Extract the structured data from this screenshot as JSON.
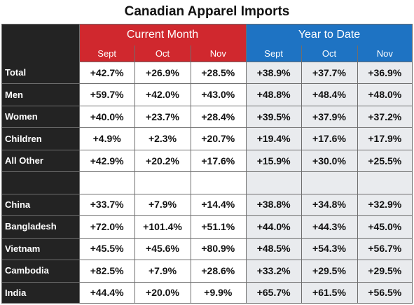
{
  "chart_data": {
    "type": "table",
    "title": "Canadian Apparel Imports",
    "column_groups": [
      {
        "name": "Current Month",
        "months": [
          "Sept",
          "Oct",
          "Nov"
        ],
        "color": "#d0282e"
      },
      {
        "name": "Year to Date",
        "months": [
          "Sept",
          "Oct",
          "Nov"
        ],
        "color": "#1e73c3"
      }
    ],
    "rows": [
      {
        "label": "Total",
        "values": [
          "+42.7%",
          "+26.9%",
          "+28.5%",
          "+38.9%",
          "+37.7%",
          "+36.9%"
        ]
      },
      {
        "label": "Men",
        "values": [
          "+59.7%",
          "+42.0%",
          "+43.0%",
          "+48.8%",
          "+48.4%",
          "+48.0%"
        ]
      },
      {
        "label": "Women",
        "values": [
          "+40.0%",
          "+23.7%",
          "+28.4%",
          "+39.5%",
          "+37.9%",
          "+37.2%"
        ]
      },
      {
        "label": "Children",
        "values": [
          "+4.9%",
          "+2.3%",
          "+20.7%",
          "+19.4%",
          "+17.6%",
          "+17.9%"
        ]
      },
      {
        "label": "All Other",
        "values": [
          "+42.9%",
          "+20.2%",
          "+17.6%",
          "+15.9%",
          "+30.0%",
          "+25.5%"
        ]
      },
      {
        "label": "",
        "values": [
          "",
          "",
          "",
          "",
          "",
          ""
        ]
      },
      {
        "label": "China",
        "values": [
          "+33.7%",
          "+7.9%",
          "+14.4%",
          "+38.8%",
          "+34.8%",
          "+32.9%"
        ]
      },
      {
        "label": "Bangladesh",
        "values": [
          "+72.0%",
          "+101.4%",
          "+51.1%",
          "+44.0%",
          "+44.3%",
          "+45.0%"
        ]
      },
      {
        "label": "Vietnam",
        "values": [
          "+45.5%",
          "+45.6%",
          "+80.9%",
          "+48.5%",
          "+54.3%",
          "+56.7%"
        ]
      },
      {
        "label": "Cambodia",
        "values": [
          "+82.5%",
          "+7.9%",
          "+28.6%",
          "+33.2%",
          "+29.5%",
          "+29.5%"
        ]
      },
      {
        "label": "India",
        "values": [
          "+44.4%",
          "+20.0%",
          "+9.9%",
          "+65.7%",
          "+61.5%",
          "+56.5%"
        ]
      }
    ],
    "colors": {
      "label_bg": "#232323",
      "current_month": "#d0282e",
      "year_to_date": "#1e73c3",
      "ytd_cell_bg": "#e9ebee"
    }
  }
}
